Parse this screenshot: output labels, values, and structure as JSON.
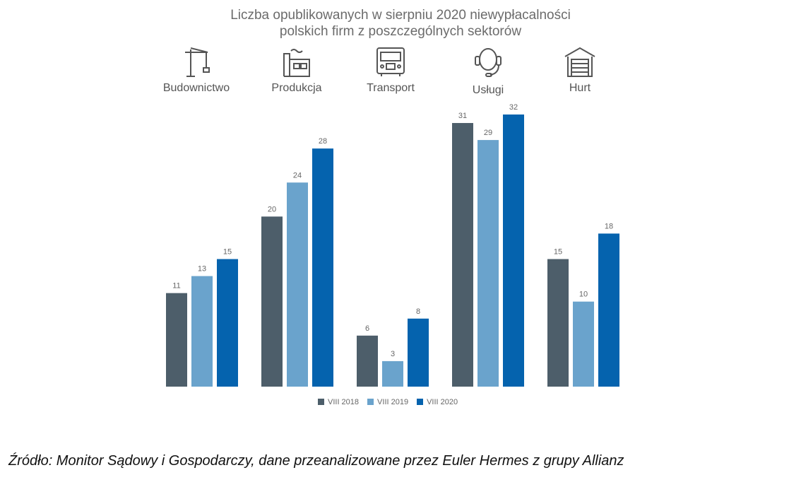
{
  "chart_data": {
    "type": "bar",
    "title": "Liczba opublikowanych w sierpniu 2020 niewypłacalności polskich firm z poszczególnych sektorów",
    "title_lines": [
      "Liczba opublikowanych w sierpniu 2020 niewypłacalności",
      "polskich firm z poszczególnych sektorów"
    ],
    "categories": [
      "Budownictwo",
      "Produkcja",
      "Transport",
      "Usługi",
      "Hurt"
    ],
    "category_icons": [
      "crane-icon",
      "factory-icon",
      "truck-icon",
      "headset-icon",
      "warehouse-icon"
    ],
    "series": [
      {
        "name": "VIII 2018",
        "color": "#4d5e6a",
        "values": [
          11,
          20,
          6,
          31,
          15
        ]
      },
      {
        "name": "VIII 2019",
        "color": "#6aa3cc",
        "values": [
          13,
          24,
          3,
          29,
          10
        ]
      },
      {
        "name": "VIII 2020",
        "color": "#0563ae",
        "values": [
          15,
          28,
          8,
          32,
          18
        ]
      }
    ],
    "ylim": [
      0,
      32
    ],
    "grid": false,
    "data_labels": true,
    "legend_position": "bottom"
  },
  "source": "Źródło: Monitor Sądowy i Gospodarczy, dane przeanalizowane przez Euler Hermes z grupy Allianz"
}
